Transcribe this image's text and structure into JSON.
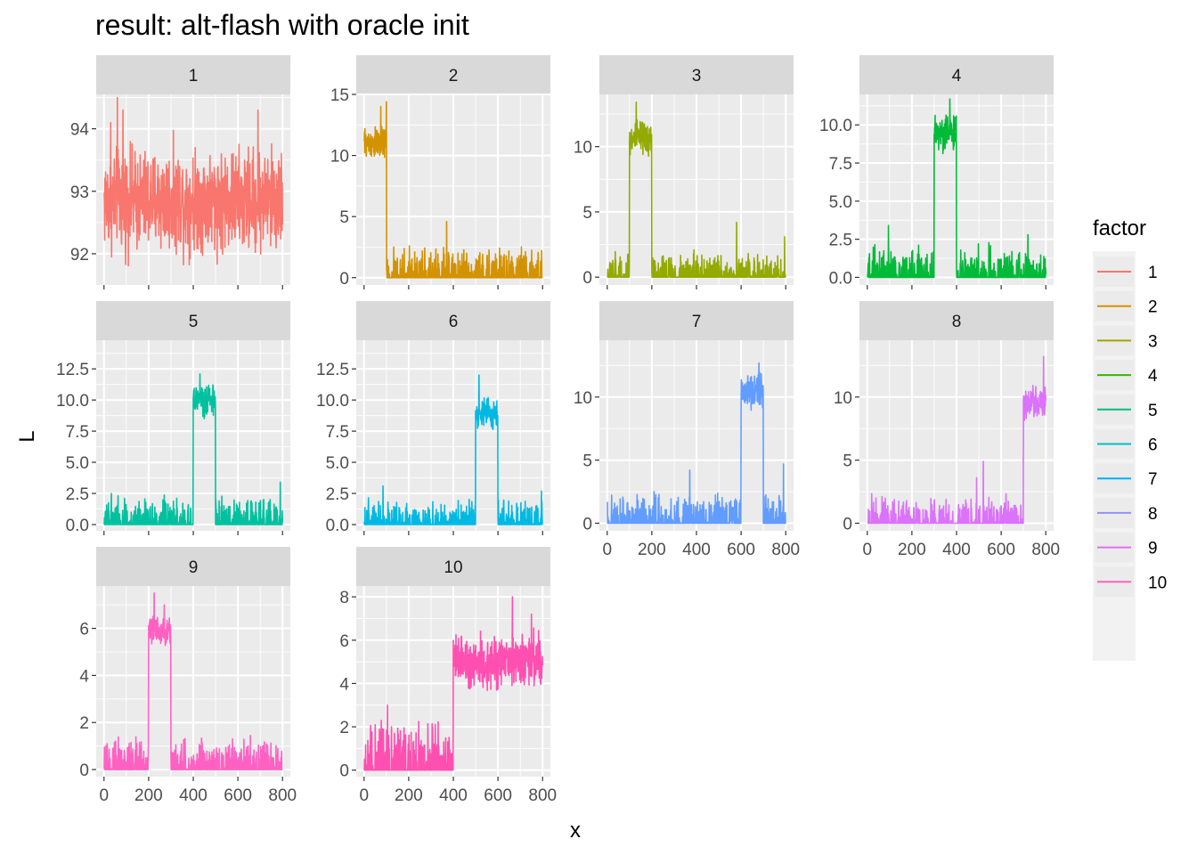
{
  "chart_data": {
    "type": "line",
    "title": "result: alt-flash with oracle init",
    "xlabel": "x",
    "ylabel": "L",
    "x_range": [
      1,
      800
    ],
    "x_ticks": [
      0,
      200,
      400,
      600,
      800
    ],
    "x_tick_labels": [
      "0",
      "200",
      "400",
      "600",
      "800"
    ],
    "grid": true,
    "facet_layout": {
      "rows": 3,
      "cols": 4
    },
    "legend": {
      "title": "factor",
      "position": "right",
      "entries": [
        "1",
        "2",
        "3",
        "4",
        "5",
        "6",
        "7",
        "8",
        "9",
        "10"
      ]
    },
    "panels": [
      {
        "label": "1",
        "color": "#F8766D",
        "ylim": [
          91.5,
          94.55
        ],
        "y_ticks": [
          92,
          93,
          94
        ],
        "y_tick_labels": [
          "92",
          "93",
          "94"
        ],
        "segments": [
          {
            "x_start": 1,
            "x_end": 800,
            "level": 92.85,
            "jitter": 0.55
          }
        ],
        "peaks": [
          [
            60,
            94.5
          ],
          [
            85,
            94.3
          ],
          [
            30,
            94.1
          ],
          [
            690,
            94.3
          ]
        ],
        "spikes_max": 0
      },
      {
        "label": "2",
        "color": "#D39200",
        "ylim": [
          -0.6,
          15
        ],
        "y_ticks": [
          0,
          5,
          10,
          15
        ],
        "y_tick_labels": [
          "0",
          "5",
          "10",
          "15"
        ],
        "segments": [
          {
            "x_start": 1,
            "x_end": 100,
            "level": 11.0,
            "jitter": 0.9
          },
          {
            "x_start": 100,
            "x_end": 800,
            "level": 0,
            "jitter": 0
          }
        ],
        "peaks": [
          [
            75,
            14.0
          ],
          [
            100,
            14.4
          ],
          [
            370,
            4.6
          ]
        ],
        "spikes_max": 2.8
      },
      {
        "label": "3",
        "color": "#93AA00",
        "ylim": [
          -0.6,
          14
        ],
        "y_ticks": [
          0,
          5,
          10
        ],
        "y_tick_labels": [
          "0",
          "5",
          "10"
        ],
        "segments": [
          {
            "x_start": 1,
            "x_end": 100,
            "level": 0,
            "jitter": 0
          },
          {
            "x_start": 100,
            "x_end": 200,
            "level": 10.6,
            "jitter": 0.9
          },
          {
            "x_start": 200,
            "x_end": 800,
            "level": 0,
            "jitter": 0
          }
        ],
        "peaks": [
          [
            130,
            13.4
          ],
          [
            580,
            4.2
          ],
          [
            795,
            3.1
          ]
        ],
        "spikes_max": 2.1
      },
      {
        "label": "4",
        "color": "#00BA38",
        "ylim": [
          -0.5,
          12
        ],
        "y_ticks": [
          0,
          2.5,
          5,
          7.5,
          10
        ],
        "y_tick_labels": [
          "0.0",
          "2.5",
          "5.0",
          "7.5",
          "10.0"
        ],
        "segments": [
          {
            "x_start": 1,
            "x_end": 300,
            "level": 0,
            "jitter": 0
          },
          {
            "x_start": 300,
            "x_end": 400,
            "level": 9.5,
            "jitter": 0.8
          },
          {
            "x_start": 400,
            "x_end": 800,
            "level": 0,
            "jitter": 0
          }
        ],
        "peaks": [
          [
            370,
            11.7
          ],
          [
            95,
            3.4
          ],
          [
            720,
            2.8
          ]
        ],
        "spikes_max": 2.3
      },
      {
        "label": "5",
        "color": "#00C19F",
        "ylim": [
          -0.5,
          14.8
        ],
        "y_ticks": [
          0,
          2.5,
          5,
          7.5,
          10,
          12.5
        ],
        "y_tick_labels": [
          "0.0",
          "2.5",
          "5.0",
          "7.5",
          "10.0",
          "12.5"
        ],
        "segments": [
          {
            "x_start": 1,
            "x_end": 400,
            "level": 0,
            "jitter": 0
          },
          {
            "x_start": 400,
            "x_end": 500,
            "level": 10.0,
            "jitter": 0.8
          },
          {
            "x_start": 500,
            "x_end": 800,
            "level": 0,
            "jitter": 0
          }
        ],
        "peaks": [
          [
            430,
            12.1
          ],
          [
            790,
            3.4
          ]
        ],
        "spikes_max": 2.6
      },
      {
        "label": "6",
        "color": "#00B9E3",
        "ylim": [
          -0.5,
          14.8
        ],
        "y_ticks": [
          0,
          2.5,
          5,
          7.5,
          10,
          12.5
        ],
        "y_tick_labels": [
          "0.0",
          "2.5",
          "5.0",
          "7.5",
          "10.0",
          "12.5"
        ],
        "segments": [
          {
            "x_start": 1,
            "x_end": 500,
            "level": 0,
            "jitter": 0
          },
          {
            "x_start": 500,
            "x_end": 600,
            "level": 9.0,
            "jitter": 0.8
          },
          {
            "x_start": 600,
            "x_end": 800,
            "level": 0,
            "jitter": 0
          }
        ],
        "peaks": [
          [
            515,
            12.0
          ],
          [
            85,
            3.1
          ],
          [
            795,
            2.7
          ]
        ],
        "spikes_max": 2.2
      },
      {
        "label": "7",
        "color": "#619CFF",
        "ylim": [
          -0.6,
          14.5
        ],
        "y_ticks": [
          0,
          5,
          10
        ],
        "y_tick_labels": [
          "0",
          "5",
          "10"
        ],
        "segments": [
          {
            "x_start": 1,
            "x_end": 600,
            "level": 0,
            "jitter": 0
          },
          {
            "x_start": 600,
            "x_end": 700,
            "level": 10.5,
            "jitter": 0.9
          },
          {
            "x_start": 700,
            "x_end": 800,
            "level": 0,
            "jitter": 0
          }
        ],
        "peaks": [
          [
            680,
            12.7
          ],
          [
            370,
            4.2
          ],
          [
            790,
            4.7
          ]
        ],
        "spikes_max": 2.6
      },
      {
        "label": "8",
        "color": "#DB72FB",
        "ylim": [
          -0.6,
          14.5
        ],
        "y_ticks": [
          0,
          5,
          10
        ],
        "y_tick_labels": [
          "0",
          "5",
          "10"
        ],
        "segments": [
          {
            "x_start": 1,
            "x_end": 700,
            "level": 0,
            "jitter": 0
          },
          {
            "x_start": 700,
            "x_end": 800,
            "level": 9.5,
            "jitter": 0.9
          }
        ],
        "peaks": [
          [
            790,
            13.2
          ],
          [
            520,
            4.9
          ],
          [
            490,
            3.6
          ]
        ],
        "spikes_max": 2.4
      },
      {
        "label": "9",
        "color": "#FF61C3",
        "ylim": [
          -0.3,
          7.8
        ],
        "y_ticks": [
          0,
          2,
          4,
          6
        ],
        "y_tick_labels": [
          "0",
          "2",
          "4",
          "6"
        ],
        "segments": [
          {
            "x_start": 1,
            "x_end": 200,
            "level": 0,
            "jitter": 0
          },
          {
            "x_start": 200,
            "x_end": 300,
            "level": 5.9,
            "jitter": 0.45
          },
          {
            "x_start": 300,
            "x_end": 800,
            "level": 0,
            "jitter": 0
          }
        ],
        "peaks": [
          [
            225,
            7.5
          ],
          [
            270,
            7.0
          ]
        ],
        "spikes_max": 1.6
      },
      {
        "label": "10",
        "color": "#FF4FB0",
        "ylim": [
          -0.3,
          8.5
        ],
        "y_ticks": [
          0,
          2,
          4,
          6,
          8
        ],
        "y_tick_labels": [
          "0",
          "2",
          "4",
          "6",
          "8"
        ],
        "segments": [
          {
            "x_start": 1,
            "x_end": 400,
            "level": 0,
            "jitter": 0
          },
          {
            "x_start": 400,
            "x_end": 800,
            "level": 5.0,
            "jitter": 0.8
          }
        ],
        "peaks": [
          [
            105,
            3.0
          ],
          [
            665,
            8.0
          ],
          [
            750,
            7.2
          ]
        ],
        "spikes_max": 2.5
      }
    ]
  },
  "legend_colors": [
    "#F8766D",
    "#D89000",
    "#A3A500",
    "#39B600",
    "#00BF7D",
    "#00BFC4",
    "#00B0F6",
    "#9590FF",
    "#E76BF3",
    "#FF62BC"
  ]
}
